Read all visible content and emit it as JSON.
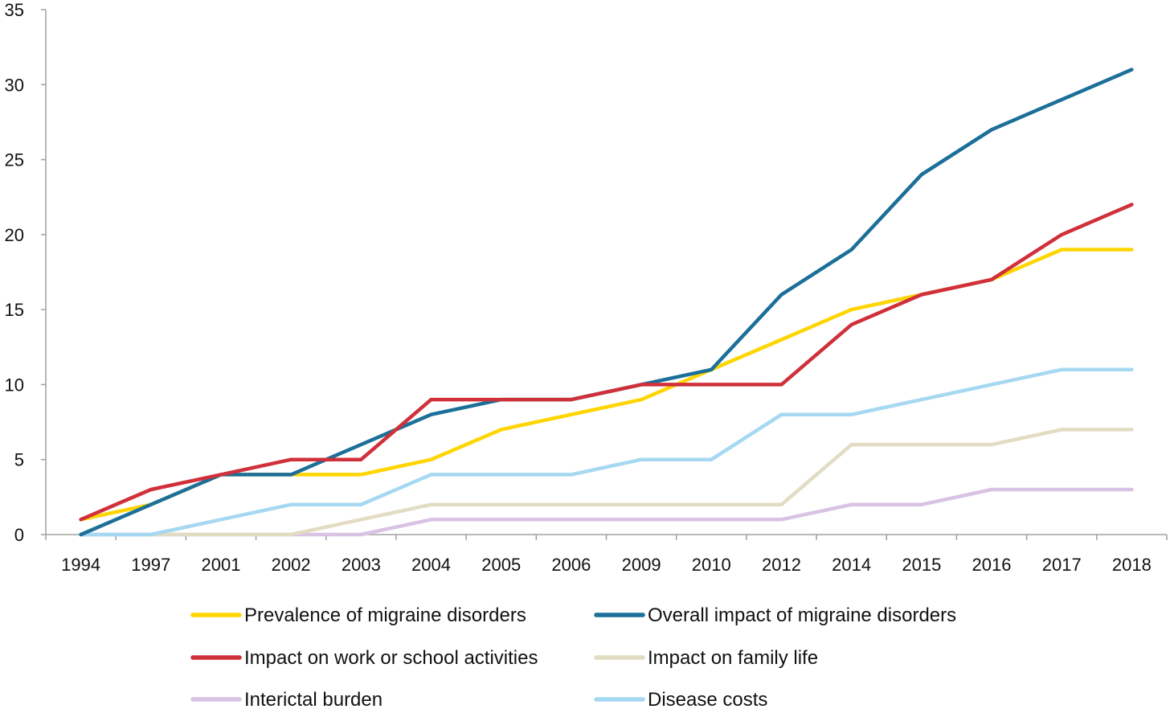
{
  "chart_data": {
    "type": "line",
    "categories": [
      "1994",
      "1997",
      "2001",
      "2002",
      "2003",
      "2004",
      "2005",
      "2006",
      "2009",
      "2010",
      "2012",
      "2014",
      "2015",
      "2016",
      "2017",
      "2018"
    ],
    "ylim": [
      0,
      35
    ],
    "yticks": [
      "0",
      "5",
      "10",
      "15",
      "20",
      "25",
      "30",
      "35"
    ],
    "grid": false,
    "legend_position": "bottom",
    "series": [
      {
        "name": "Prevalence of migraine disorders",
        "color": "#FFD500",
        "values": [
          1,
          2,
          4,
          4,
          4,
          5,
          7,
          8,
          9,
          11,
          13,
          15,
          16,
          17,
          19,
          19
        ]
      },
      {
        "name": "Overall impact of migraine disorders",
        "color": "#1B6F99",
        "values": [
          0,
          2,
          4,
          4,
          6,
          8,
          9,
          9,
          10,
          11,
          16,
          19,
          24,
          27,
          29,
          31
        ]
      },
      {
        "name": "Impact on work or school activities",
        "color": "#D0303A",
        "values": [
          1,
          3,
          4,
          5,
          5,
          9,
          9,
          9,
          10,
          10,
          10,
          14,
          16,
          17,
          20,
          22
        ]
      },
      {
        "name": "Impact on family life",
        "color": "#E2DCC2",
        "values": [
          0,
          0,
          0,
          0,
          1,
          2,
          2,
          2,
          2,
          2,
          2,
          6,
          6,
          6,
          7,
          7
        ]
      },
      {
        "name": "Interictal burden",
        "color": "#D9C3E4",
        "values": [
          0,
          0,
          0,
          0,
          0,
          1,
          1,
          1,
          1,
          1,
          1,
          2,
          2,
          3,
          3,
          3
        ]
      },
      {
        "name": "Disease costs",
        "color": "#A6D8F2",
        "values": [
          0,
          0,
          1,
          2,
          2,
          4,
          4,
          4,
          5,
          5,
          8,
          8,
          9,
          10,
          11,
          11
        ]
      }
    ]
  }
}
